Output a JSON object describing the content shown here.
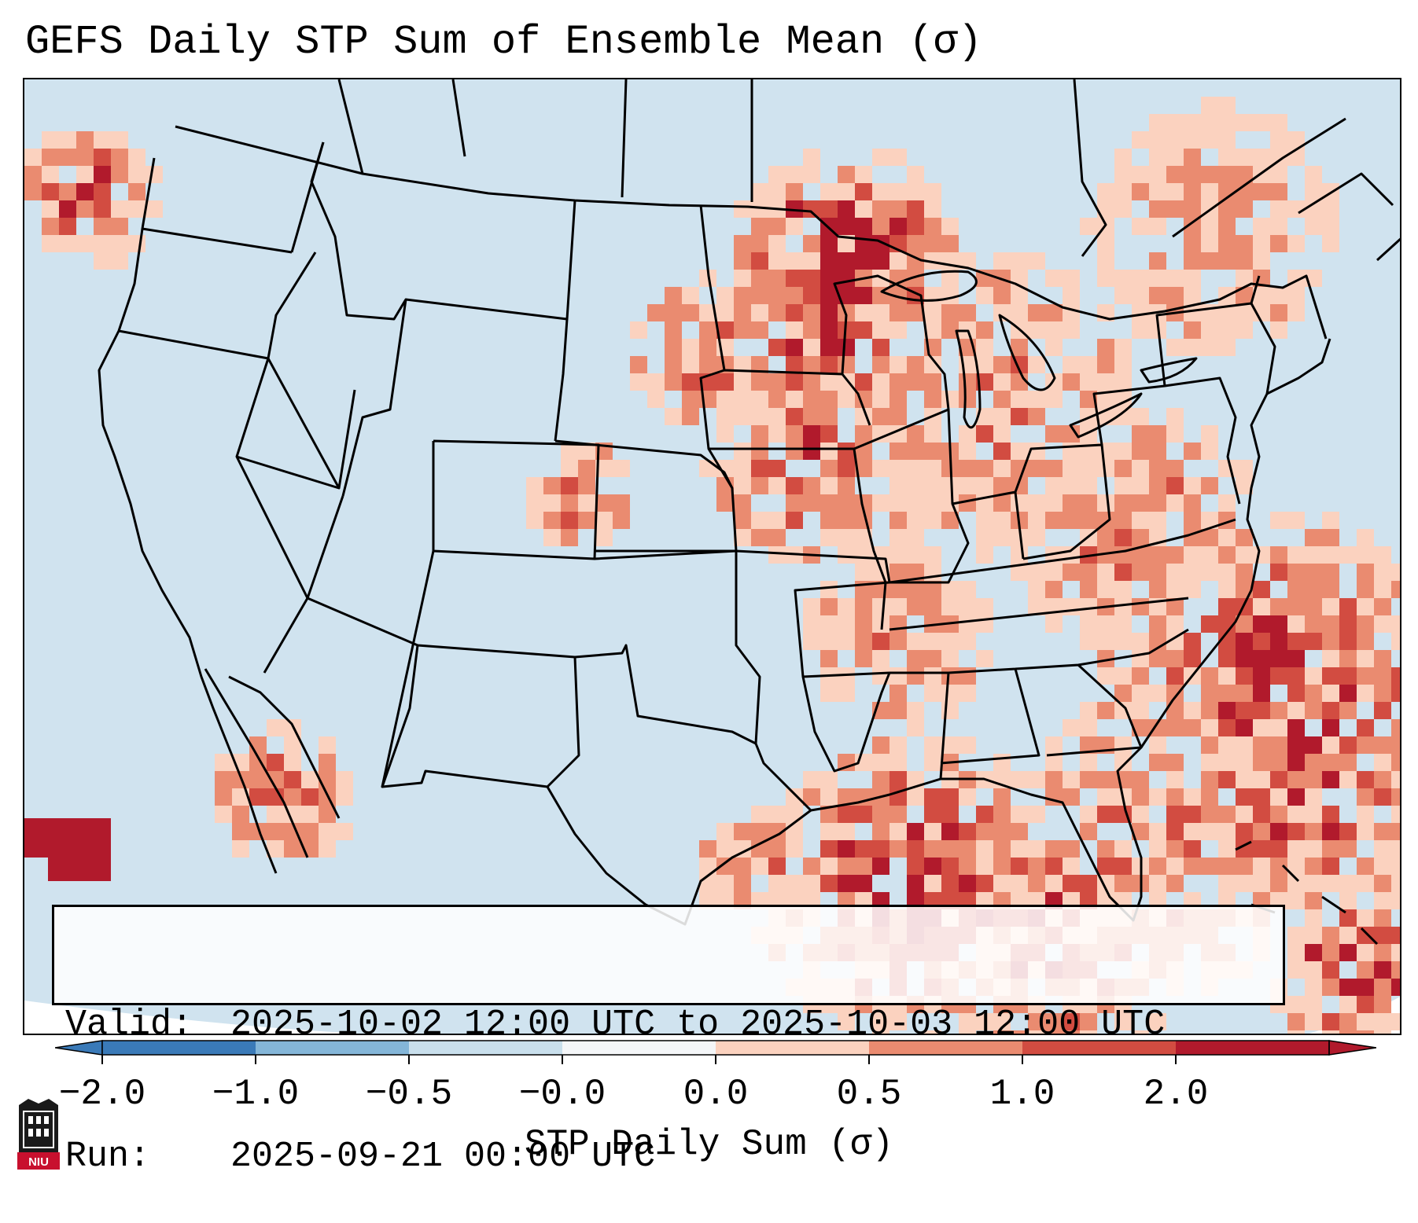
{
  "title": "GEFS Daily STP Sum of Ensemble Mean (σ)",
  "info": {
    "valid_label": "Valid:",
    "valid_value": "2025-10-02 12:00 UTC to 2025-10-03 12:00 UTC",
    "run_label": "Run:",
    "run_value": "2025-09-21 00:00 UTC"
  },
  "colorbar": {
    "label": "STP Daily Sum (σ)",
    "ticks": [
      "−2.0",
      "−1.0",
      "−0.5",
      "−0.0",
      "0.0",
      "0.5",
      "1.0",
      "2.0"
    ],
    "colors": [
      "#3a7ab8",
      "#84b6d8",
      "#c9dfec",
      "#f4f6f8",
      "#fbd2bf",
      "#ea8b70",
      "#d24c41",
      "#b11a2c"
    ],
    "extend": "both"
  },
  "colors": {
    "background": "#d0e3ef",
    "outline": "#000000",
    "low": "#fbd2bf",
    "mid": "#ea8b70",
    "high": "#d24c41",
    "max": "#b11a2c",
    "neg": "#84b6d8"
  },
  "logo": {
    "text": "NIU",
    "icon": "university-logo-icon"
  }
}
